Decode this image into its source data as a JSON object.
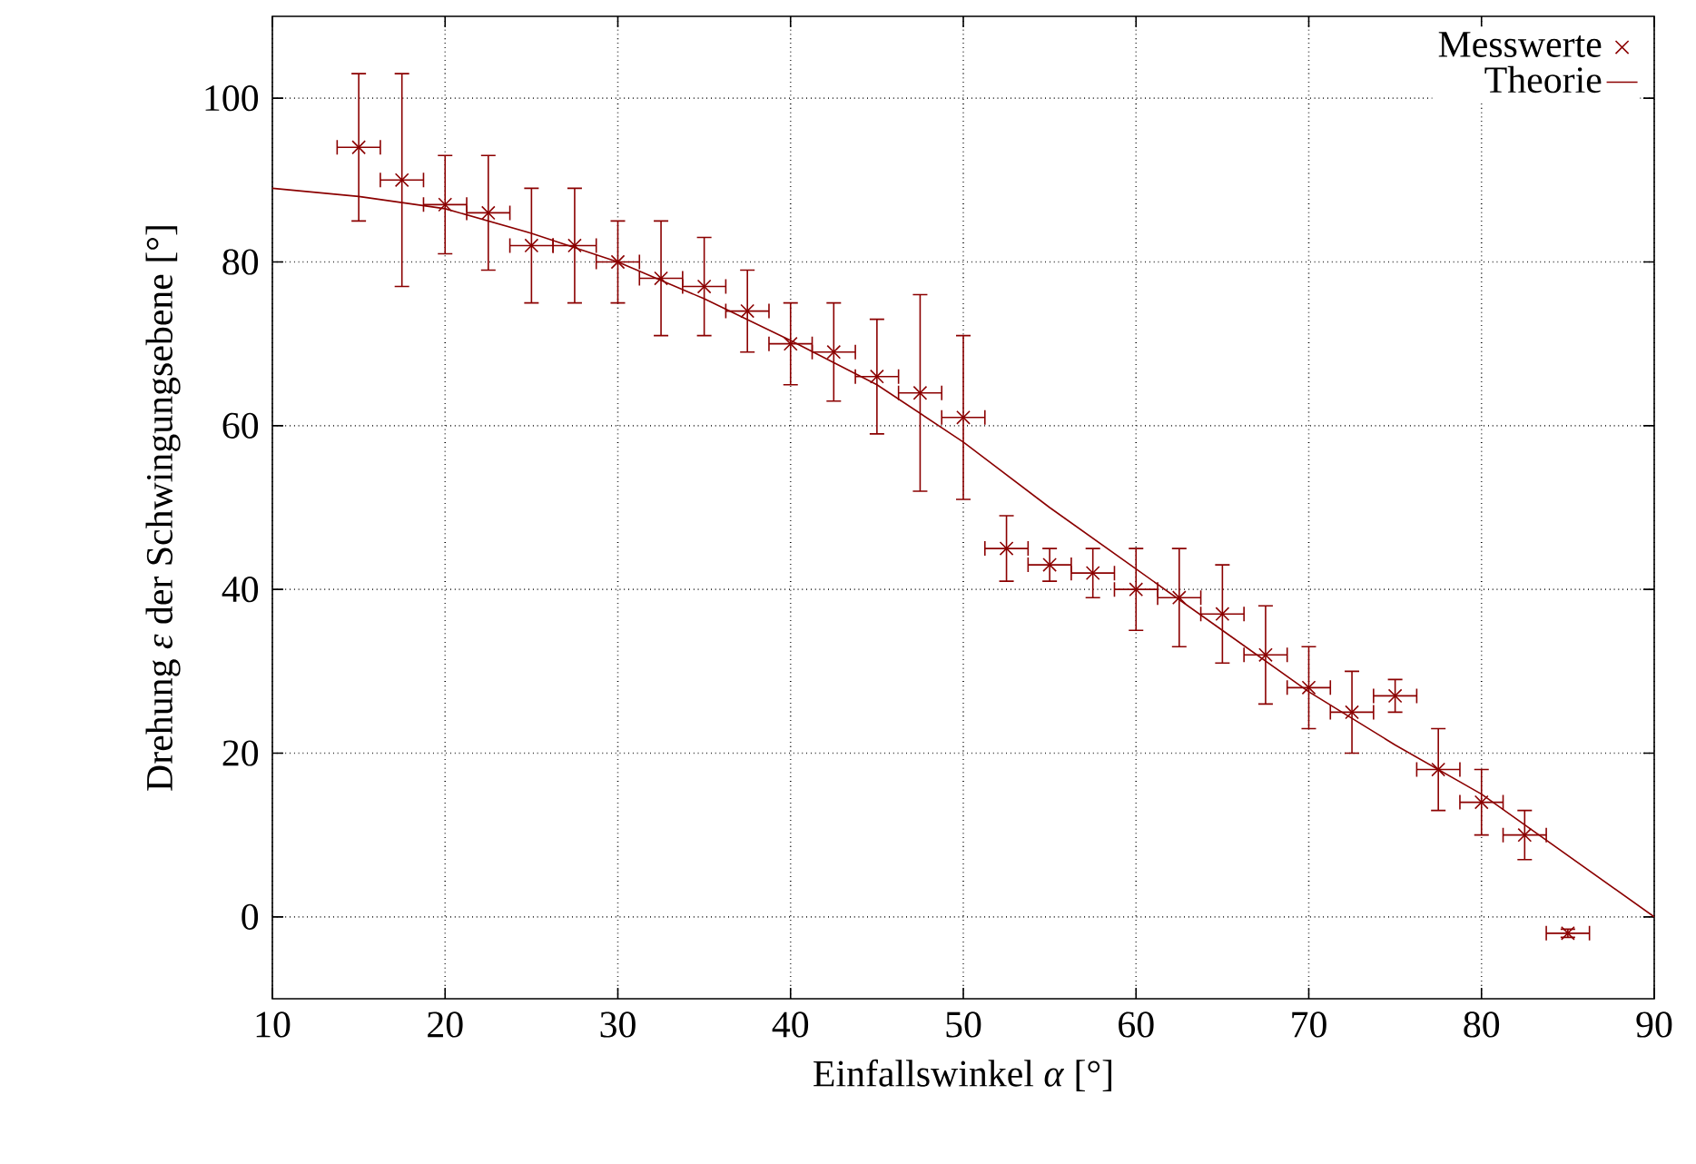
{
  "chart_data": {
    "type": "scatter",
    "xlabel": "Einfallswinkel *α* [°]",
    "ylabel": "Drehung *ε* der Schwingungsebene [°]",
    "xlim": [
      10,
      90
    ],
    "ylim": [
      -10,
      110
    ],
    "xticks": [
      10,
      20,
      30,
      40,
      50,
      60,
      70,
      80,
      90
    ],
    "yticks": [
      0,
      20,
      40,
      60,
      80,
      100
    ],
    "grid": true,
    "legend": "top right",
    "series": [
      {
        "name": "Messwerte",
        "type": "scatter",
        "marker": "cross",
        "color": "#8b0000",
        "x": [
          15,
          17.5,
          20,
          22.5,
          25,
          27.5,
          30,
          32.5,
          35,
          37.5,
          40,
          42.5,
          45,
          47.5,
          50,
          52.5,
          55,
          57.5,
          60,
          62.5,
          65,
          67.5,
          70,
          72.5,
          75,
          77.5,
          80,
          82.5,
          85
        ],
        "values": [
          94,
          90,
          87,
          86,
          82,
          82,
          80,
          78,
          77,
          74,
          70,
          69,
          66,
          64,
          61,
          45,
          43,
          42,
          40,
          39,
          37,
          32,
          28,
          25,
          27,
          18,
          14,
          10,
          -2
        ],
        "errors": [
          [
            85,
            103
          ],
          [
            77,
            103
          ],
          [
            81,
            93
          ],
          [
            79,
            93
          ],
          [
            75,
            89
          ],
          [
            75,
            89
          ],
          [
            75,
            85
          ],
          [
            71,
            85
          ],
          [
            71,
            83
          ],
          [
            69,
            79
          ],
          [
            65,
            75
          ],
          [
            63,
            75
          ],
          [
            59,
            73
          ],
          [
            52,
            76
          ],
          [
            51,
            71
          ],
          [
            41,
            49
          ],
          [
            41,
            45
          ],
          [
            39,
            45
          ],
          [
            35,
            45
          ],
          [
            33,
            45
          ],
          [
            31,
            43
          ],
          [
            26,
            38
          ],
          [
            23,
            33
          ],
          [
            20,
            30
          ],
          [
            25,
            29
          ],
          [
            13,
            23
          ],
          [
            10,
            18
          ],
          [
            7,
            13
          ],
          [
            -2.5,
            -1.5
          ]
        ],
        "xerrors": [
          1.25,
          1.25,
          1.25,
          1.25,
          1.25,
          1.25,
          1.25,
          1.25,
          1.25,
          1.25,
          1.25,
          1.25,
          1.25,
          1.25,
          1.25,
          1.25,
          1.25,
          1.25,
          1.25,
          1.25,
          1.25,
          1.25,
          1.25,
          1.25,
          1.25,
          1.25,
          1.25,
          1.25,
          1.25
        ]
      },
      {
        "name": "Theorie",
        "type": "line",
        "marker": "none",
        "line_style": "solid",
        "color": "#8b0000",
        "x": [
          10,
          15,
          20,
          25,
          30,
          35,
          40,
          45,
          50,
          55,
          60,
          65,
          70,
          75,
          80,
          85,
          90
        ],
        "values": [
          89,
          88,
          86.5,
          83.5,
          80,
          75.5,
          70.4,
          65,
          58,
          50,
          42.5,
          35,
          27.5,
          21,
          15,
          7.5,
          0
        ]
      }
    ]
  }
}
